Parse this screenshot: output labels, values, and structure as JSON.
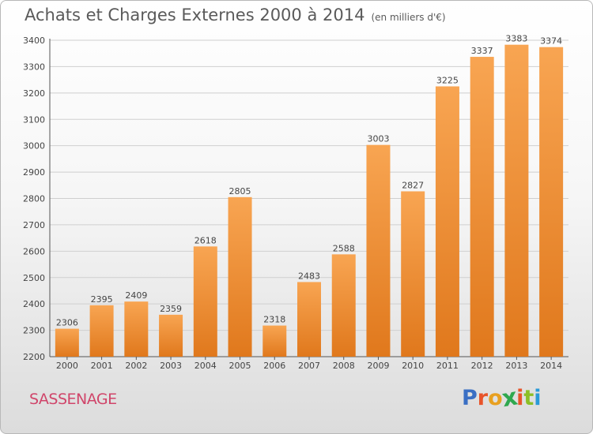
{
  "header": {
    "title": "Achats et Charges Externes 2000 à 2014",
    "unit": "(en milliers d'€)"
  },
  "footer": {
    "city": "SASSENAGE",
    "logo": "Proxiti"
  },
  "colors": {
    "bar_light": "#f8a552",
    "bar_dark": "#e0781c",
    "grid": "#cfcfcf",
    "logo": [
      "#3a6fc4",
      "#e8542a",
      "#e8a020",
      "#2fa84f",
      "#e8542a",
      "#8cbf26",
      "#2a9ad8"
    ]
  },
  "chart_data": {
    "type": "bar",
    "title": "Achats et Charges Externes 2000 à 2014",
    "subtitle": "(en milliers d'€)",
    "xlabel": "",
    "ylabel": "",
    "categories": [
      "2000",
      "2001",
      "2002",
      "2003",
      "2004",
      "2005",
      "2006",
      "2007",
      "2008",
      "2009",
      "2010",
      "2011",
      "2012",
      "2013",
      "2014"
    ],
    "values": [
      2306,
      2395,
      2409,
      2359,
      2618,
      2805,
      2318,
      2483,
      2588,
      3003,
      2827,
      3225,
      3337,
      3383,
      3374
    ],
    "ylim": [
      2200,
      3400
    ],
    "yticks": [
      2200,
      2300,
      2400,
      2500,
      2600,
      2700,
      2800,
      2900,
      3000,
      3100,
      3200,
      3300,
      3400
    ],
    "grid": true,
    "legend": "none"
  }
}
